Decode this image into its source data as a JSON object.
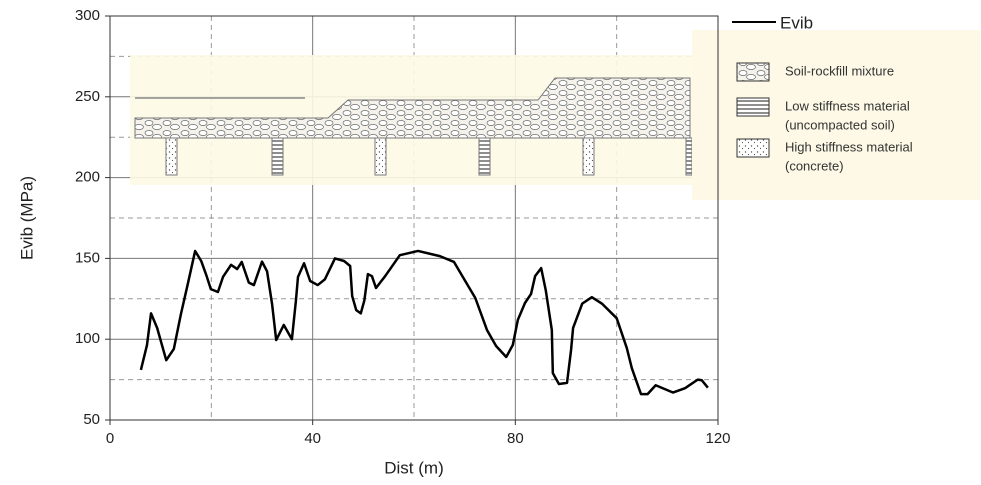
{
  "chart_data": {
    "type": "line",
    "x_label": "Dist (m)",
    "y_label": "Evib (MPa)",
    "xlim": [
      0,
      120
    ],
    "xticks": [
      0,
      40,
      80,
      120
    ],
    "x_minor_ticks": [
      20,
      60,
      100
    ],
    "ylim": [
      50,
      300
    ],
    "yticks": [
      50,
      100,
      150,
      200,
      250,
      300
    ],
    "y_minor_ticks": [
      75,
      125,
      175,
      225,
      275
    ],
    "grid": true,
    "legend": "top-right",
    "series": [
      {
        "name": "Evib",
        "color": "#000000",
        "x": [
          6.1,
          7.3,
          8.1,
          9.3,
          11.1,
          12.6,
          14,
          15.4,
          16.8,
          18,
          19,
          19.9,
          21.3,
          22.3,
          23.9,
          25.1,
          26,
          27.4,
          28.4,
          30,
          31,
          32,
          32.8,
          34.3,
          35.9,
          36.7,
          37.1,
          38.3,
          39.5,
          41,
          42.4,
          44.4,
          46.2,
          47.4,
          47.8,
          48.6,
          49.5,
          50.2,
          50.9,
          51.7,
          52.5,
          54.3,
          57.2,
          60.8,
          65.1,
          67.9,
          70.3,
          72.1,
          74.4,
          76.2,
          78.2,
          79.5,
          80.5,
          81.9,
          83.1,
          83.9,
          85.1,
          86,
          87.2,
          87.4,
          88.6,
          90.2,
          91,
          91.4,
          93.2,
          95.1,
          97.1,
          100,
          102,
          103,
          104.8,
          106.1,
          107.7,
          111.1,
          113.5,
          116,
          116.8,
          118
        ],
        "values": [
          81,
          96.4,
          116,
          107,
          87,
          94,
          115.6,
          134.8,
          154.6,
          148.4,
          139.7,
          131,
          129.2,
          138.5,
          146,
          143.4,
          147.8,
          135,
          133.5,
          148,
          142,
          121.5,
          99.5,
          108.8,
          100,
          124,
          138.5,
          147,
          136,
          133.5,
          137,
          150,
          148.4,
          145.3,
          126.7,
          118,
          116,
          124,
          140.3,
          139,
          131.7,
          139,
          152,
          154.6,
          151.4,
          147.8,
          135,
          125.5,
          105.7,
          95.8,
          89,
          96.4,
          112,
          122.4,
          128,
          139,
          144,
          130.4,
          105.7,
          79,
          72.3,
          73,
          93.3,
          107,
          122,
          126,
          122,
          113,
          94.5,
          82,
          66,
          66,
          71.5,
          67,
          69.7,
          75,
          74.6,
          70
        ]
      }
    ]
  },
  "inset": {
    "legend": [
      {
        "lines": [
          "Soil-rockfill mixture"
        ]
      },
      {
        "lines": [
          "Low stiffness material",
          "(uncompacted soil)"
        ]
      },
      {
        "lines": [
          "High stiffness material",
          "(concrete)"
        ]
      }
    ]
  }
}
